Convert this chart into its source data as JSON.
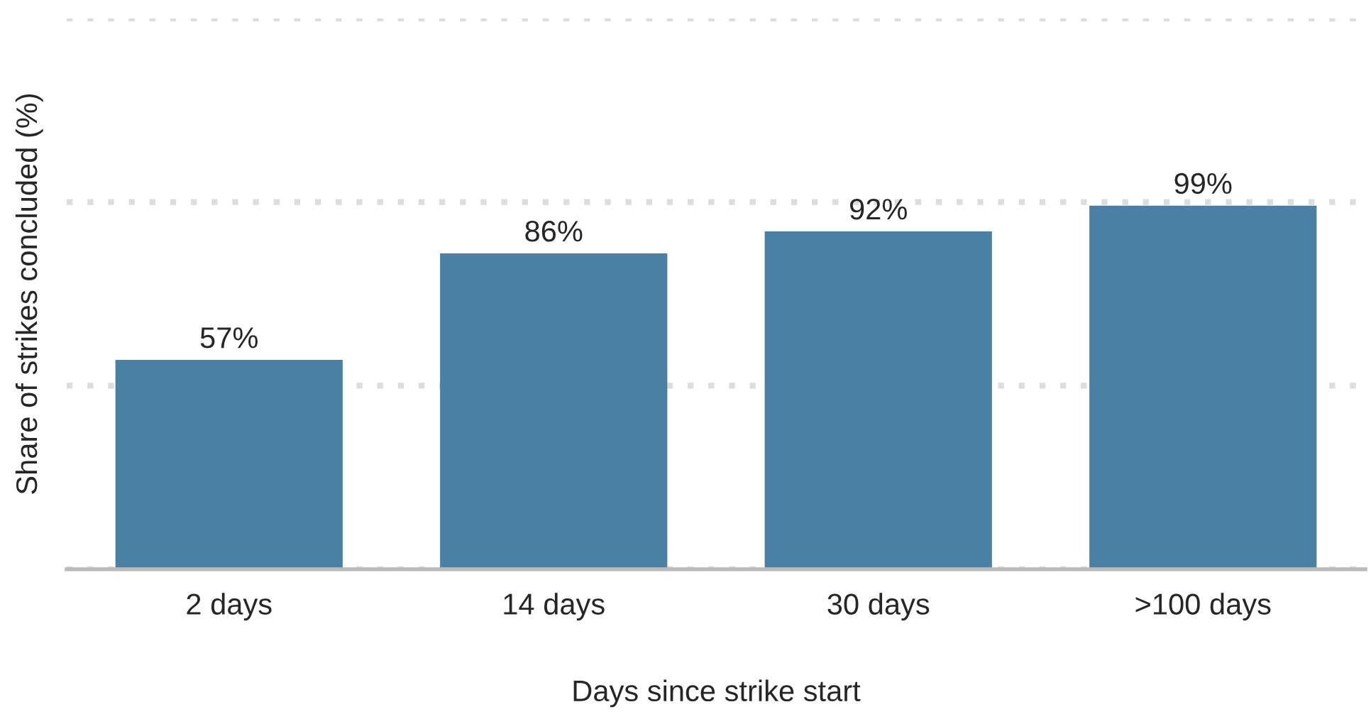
{
  "chart_data": {
    "type": "bar",
    "xlabel": "Days since strike start",
    "ylabel": "Share of strikes concluded (%)",
    "categories": [
      "2 days",
      "14 days",
      "30 days",
      ">100 days"
    ],
    "values": [
      57,
      86,
      92,
      99
    ],
    "value_labels": [
      "57%",
      "86%",
      "92%",
      "99%"
    ],
    "color": "#4a80a3",
    "ylim": [
      0,
      150
    ],
    "yticks": [
      {
        "value": 0,
        "label": null
      },
      {
        "value": 50,
        "label": null
      },
      {
        "value": 100,
        "label": null
      },
      {
        "value": 150,
        "label": null
      }
    ],
    "tick_labels": "x",
    "grid": "y",
    "legend": false
  }
}
